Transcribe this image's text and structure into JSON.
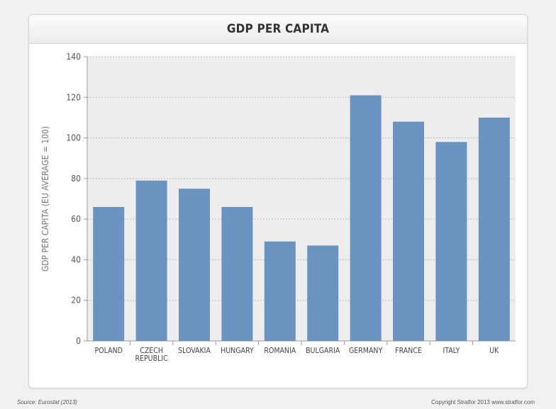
{
  "footer": {
    "source": "Source: Eurostat (2013)",
    "copyright": "Copyright Stratfor 2013   www.stratfor.com"
  },
  "chart_data": {
    "type": "bar",
    "title": "GDP PER CAPITA",
    "xlabel": "",
    "ylabel": "GDP PER CAPITA (EU AVERAGE = 100)",
    "categories": [
      "POLAND",
      "CZECH\nREPUBLIC",
      "SLOVAKIA",
      "HUNGARY",
      "ROMANIA",
      "BULGARIA",
      "GERMANY",
      "FRANCE",
      "ITALY",
      "UK"
    ],
    "values": [
      66,
      79,
      75,
      66,
      49,
      47,
      121,
      108,
      98,
      110
    ],
    "ylim": [
      0,
      140
    ],
    "yticks": [
      0,
      20,
      40,
      60,
      80,
      100,
      120,
      140
    ],
    "grid": true,
    "colors": {
      "bar": "#6b93c0",
      "plot_bg": "#ededed",
      "grid": "#bdbdbd",
      "axis": "#9a9a9a",
      "tick_label": "#555555"
    }
  }
}
